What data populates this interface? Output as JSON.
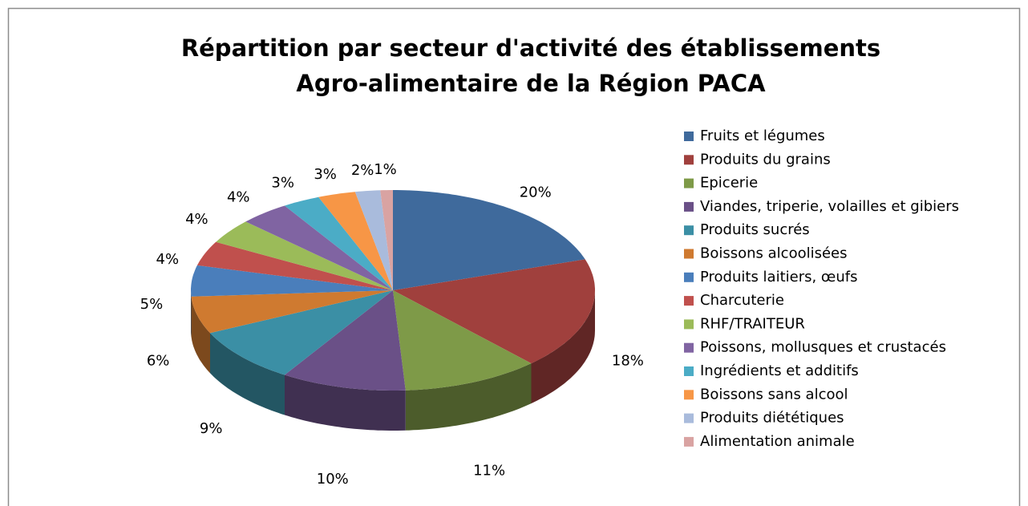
{
  "chart_data": {
    "type": "pie3d",
    "title": [
      "Répartition par secteur d'activité des établissements",
      "Agro-alimentaire de la Région PACA"
    ],
    "categories": [
      "Fruits et légumes",
      "Produits du grains",
      "Epicerie",
      "Viandes, triperie, volailles et gibiers",
      "Produits sucrés",
      "Boissons alcoolisées",
      "Produits laitiers, œufs",
      "Charcuterie",
      "RHF/TRAITEUR",
      "Poissons, mollusques et crustacés",
      "Ingrédients et additifs",
      "Boissons sans alcool",
      "Produits diététiques",
      "Alimentation animale"
    ],
    "values": [
      20,
      18,
      11,
      10,
      9,
      6,
      5,
      4,
      4,
      4,
      3,
      3,
      2,
      1
    ],
    "value_labels": [
      "20%",
      "18%",
      "11%",
      "10%",
      "9%",
      "6%",
      "5%",
      "4%",
      "4%",
      "4%",
      "3%",
      "3%",
      "2%",
      "1%"
    ],
    "colors": [
      "#3F6A9C",
      "#A0403D",
      "#7E9A48",
      "#6A5087",
      "#3B8FA5",
      "#CF7A30",
      "#4A7EBB",
      "#C0504D",
      "#9BBB59",
      "#8064A2",
      "#4BACC6",
      "#F79646",
      "#A9BBDC",
      "#D9A3A2"
    ],
    "legend": "right"
  }
}
